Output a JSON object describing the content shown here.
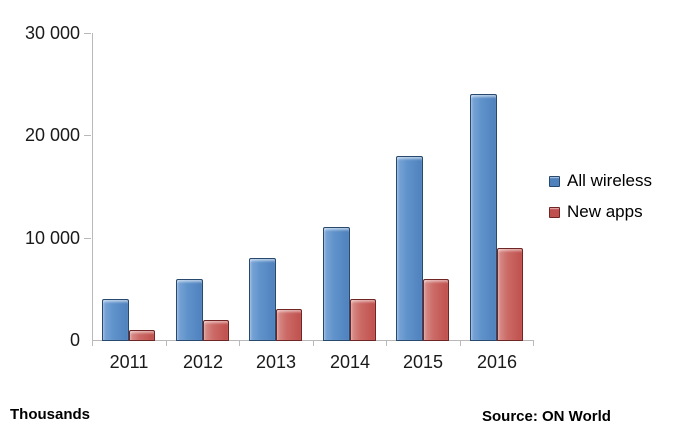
{
  "chart_data": {
    "type": "bar",
    "categories": [
      "2011",
      "2012",
      "2013",
      "2014",
      "2015",
      "2016"
    ],
    "series": [
      {
        "name": "All wireless",
        "color": "#4F81BD",
        "values": [
          4000,
          6000,
          8000,
          11000,
          18000,
          24000
        ]
      },
      {
        "name": "New apps",
        "color": "#C0504D",
        "values": [
          1000,
          2000,
          3000,
          4000,
          6000,
          9000
        ]
      }
    ],
    "title": "",
    "xlabel": "",
    "ylabel": "Thousands",
    "ylim": [
      0,
      30000
    ],
    "yticks": [
      {
        "value": 30000,
        "label": "30 000"
      },
      {
        "value": 20000,
        "label": "20 000"
      },
      {
        "value": 10000,
        "label": "10 000"
      },
      {
        "value": 0,
        "label": "0"
      }
    ],
    "grid": false,
    "legend_position": "right",
    "unit_label": "Thousands",
    "source_label": "Source: ON World"
  }
}
